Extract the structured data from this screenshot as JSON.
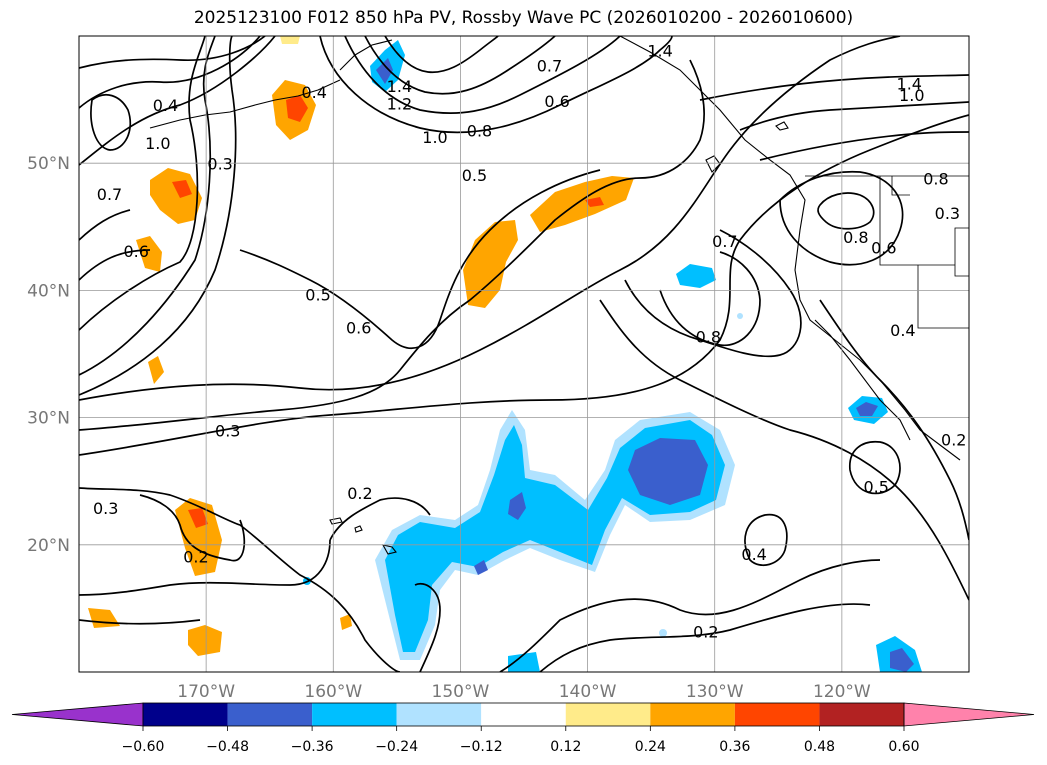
{
  "title": "2025123100 F012 850 hPa PV, Rossby Wave PC (2026010200 - 2026010600)",
  "map": {
    "lon_range": [
      -180,
      -110
    ],
    "lat_range": [
      10,
      60
    ],
    "lon_ticks": [
      {
        "lon": -170,
        "label": "170°W"
      },
      {
        "lon": -160,
        "label": "160°W"
      },
      {
        "lon": -150,
        "label": "150°W"
      },
      {
        "lon": -140,
        "label": "140°W"
      },
      {
        "lon": -130,
        "label": "130°W"
      },
      {
        "lon": -120,
        "label": "120°W"
      }
    ],
    "lat_ticks": [
      {
        "lat": 20,
        "label": "20°N"
      },
      {
        "lat": 30,
        "label": "30°N"
      },
      {
        "lat": 40,
        "label": "40°N"
      },
      {
        "lat": 50,
        "label": "50°N"
      }
    ],
    "gridlines": true,
    "contour_labels": [
      {
        "text": "0.7",
        "lon": -143.0,
        "lat": 57.6
      },
      {
        "text": "1.4",
        "lon": -134.3,
        "lat": 58.8
      },
      {
        "text": "1.4",
        "lon": -154.8,
        "lat": 56.0
      },
      {
        "text": "1.2",
        "lon": -154.8,
        "lat": 54.6
      },
      {
        "text": "1.0",
        "lon": -152.0,
        "lat": 52.0
      },
      {
        "text": "0.8",
        "lon": -148.5,
        "lat": 52.5
      },
      {
        "text": "0.6",
        "lon": -142.4,
        "lat": 54.8
      },
      {
        "text": "0.5",
        "lon": -148.9,
        "lat": 49.0
      },
      {
        "text": "1.4",
        "lon": -114.7,
        "lat": 56.2
      },
      {
        "text": "1.0",
        "lon": -114.5,
        "lat": 55.3
      },
      {
        "text": "0.4",
        "lon": -173.2,
        "lat": 54.5
      },
      {
        "text": "0.4",
        "lon": -161.5,
        "lat": 55.5
      },
      {
        "text": "1.0",
        "lon": -173.8,
        "lat": 51.5
      },
      {
        "text": "0.3",
        "lon": -168.9,
        "lat": 49.9
      },
      {
        "text": "0.7",
        "lon": -177.6,
        "lat": 47.5
      },
      {
        "text": "0.6",
        "lon": -175.5,
        "lat": 43.0
      },
      {
        "text": "0.5",
        "lon": -161.2,
        "lat": 39.6
      },
      {
        "text": "0.6",
        "lon": -158.0,
        "lat": 37.0
      },
      {
        "text": "0.7",
        "lon": -129.2,
        "lat": 43.8
      },
      {
        "text": "0.8",
        "lon": -130.5,
        "lat": 36.3
      },
      {
        "text": "0.8",
        "lon": -118.9,
        "lat": 44.1
      },
      {
        "text": "0.6",
        "lon": -116.7,
        "lat": 43.3
      },
      {
        "text": "0.8",
        "lon": -112.6,
        "lat": 48.7
      },
      {
        "text": "0.3",
        "lon": -168.3,
        "lat": 28.9
      },
      {
        "text": "0.3",
        "lon": -177.9,
        "lat": 22.8
      },
      {
        "text": "0.2",
        "lon": -157.9,
        "lat": 24.0
      },
      {
        "text": "0.2",
        "lon": -170.8,
        "lat": 19.0
      },
      {
        "text": "0.5",
        "lon": -117.3,
        "lat": 24.5
      },
      {
        "text": "0.4",
        "lon": -126.9,
        "lat": 19.2
      },
      {
        "text": "0.2",
        "lon": -130.7,
        "lat": 13.1
      },
      {
        "text": "0.2",
        "lon": -111.2,
        "lat": 28.2
      },
      {
        "text": "0.4",
        "lon": -115.2,
        "lat": 36.8
      },
      {
        "text": "0.3",
        "lon": -111.7,
        "lat": 46.0
      }
    ]
  },
  "colorbar": {
    "ticks": [
      "−0.60",
      "−0.48",
      "−0.36",
      "−0.24",
      "−0.12",
      "0.12",
      "0.24",
      "0.36",
      "0.48",
      "0.60"
    ],
    "colors": [
      "#9932cc",
      "#00008b",
      "#3a5fcd",
      "#00bfff",
      "#b0e2ff",
      "#ffffff",
      "#ffeb8a",
      "#ffa500",
      "#ff4500",
      "#b22222",
      "#ff82ab"
    ]
  }
}
